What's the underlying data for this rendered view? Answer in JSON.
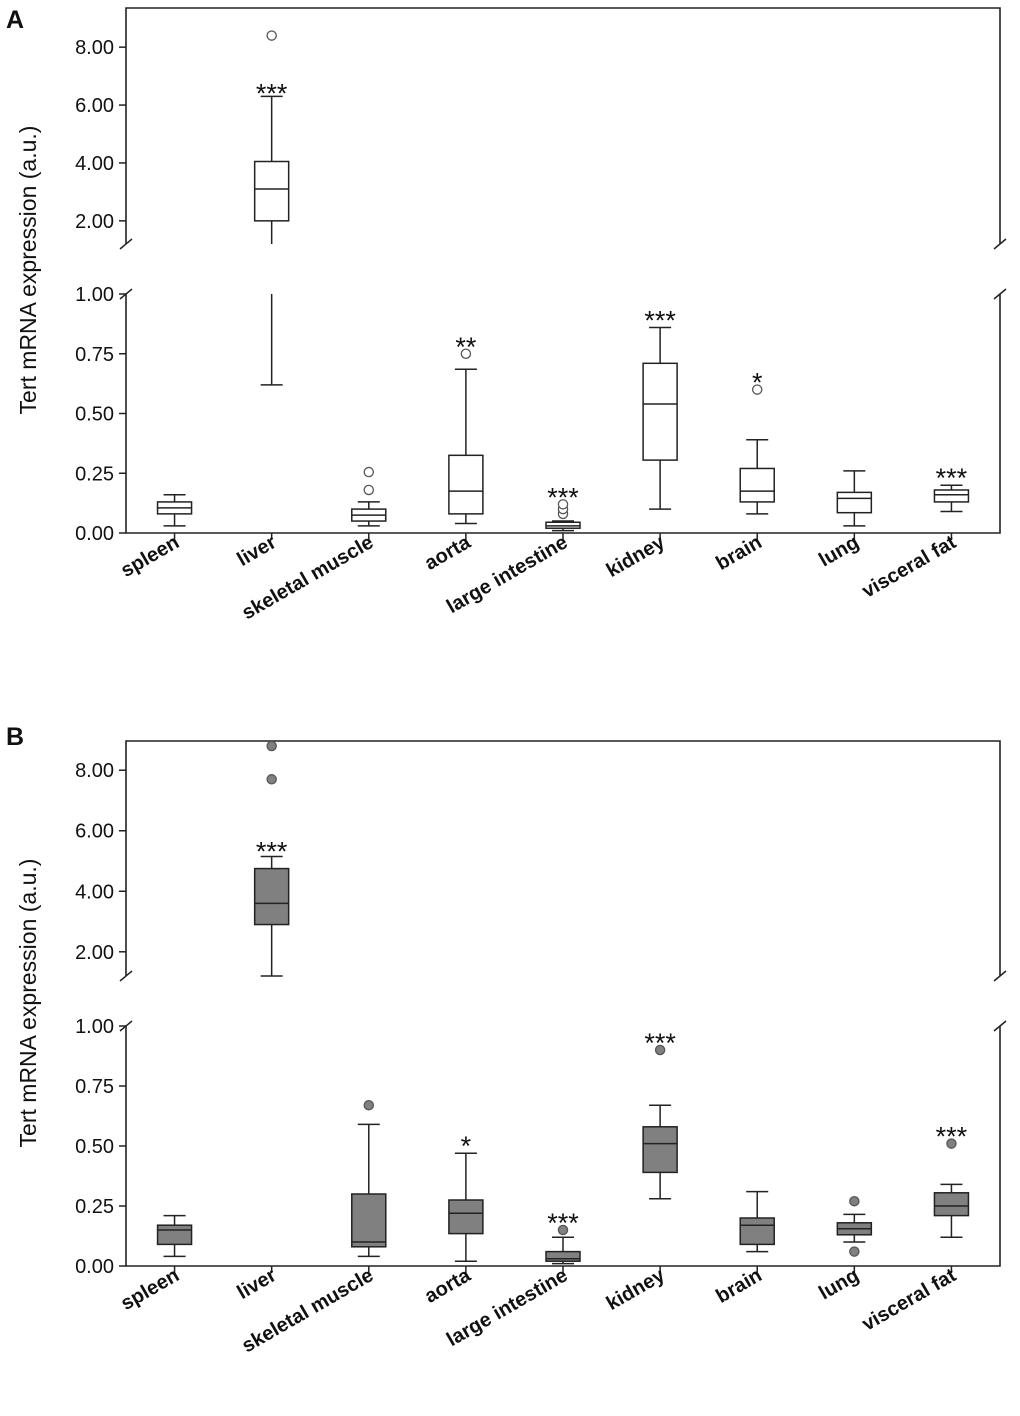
{
  "figure": {
    "colors": {
      "axis": "#222222",
      "box_fill_A": "#ffffff",
      "box_fill_B": "#808080",
      "outlier_fill_A": "#ffffff",
      "outlier_fill_B": "#808080"
    }
  },
  "chart_data": [
    {
      "panel": "A",
      "type": "box",
      "title": "",
      "ylabel": "Tert mRNA expression (a.u.)",
      "xlabel": "",
      "axis_break": true,
      "upper_ylim": [
        1.2,
        8.8
      ],
      "lower_ylim": [
        0,
        1.0
      ],
      "upper_ticks": [
        "2.00",
        "4.00",
        "6.00",
        "8.00"
      ],
      "lower_ticks": [
        "0.00",
        "0.25",
        "0.50",
        "0.75",
        "1.00"
      ],
      "categories": [
        "spleen",
        "liver",
        "skeletal muscle",
        "aorta",
        "large intestine",
        "kidney",
        "brain",
        "lung",
        "visceral fat"
      ],
      "boxes": [
        {
          "category": "spleen",
          "min": 0.03,
          "q1": 0.08,
          "median": 0.105,
          "q3": 0.13,
          "max": 0.16,
          "outliers": [],
          "significance": ""
        },
        {
          "category": "liver",
          "min": 0.62,
          "q1": 2.0,
          "median": 3.1,
          "q3": 4.05,
          "max": 6.3,
          "outliers": [
            8.4
          ],
          "significance": "***"
        },
        {
          "category": "skeletal muscle",
          "min": 0.03,
          "q1": 0.05,
          "median": 0.075,
          "q3": 0.1,
          "max": 0.13,
          "outliers": [
            0.18,
            0.255
          ],
          "significance": ""
        },
        {
          "category": "aorta",
          "min": 0.04,
          "q1": 0.08,
          "median": 0.175,
          "q3": 0.325,
          "max": 0.685,
          "outliers": [
            0.75
          ],
          "significance": "**"
        },
        {
          "category": "large intestine",
          "min": 0.01,
          "q1": 0.02,
          "median": 0.03,
          "q3": 0.045,
          "max": 0.05,
          "outliers": [
            0.08,
            0.1,
            0.12
          ],
          "significance": "***"
        },
        {
          "category": "kidney",
          "min": 0.1,
          "q1": 0.305,
          "median": 0.54,
          "q3": 0.71,
          "max": 0.86,
          "outliers": [],
          "significance": "***"
        },
        {
          "category": "brain",
          "min": 0.08,
          "q1": 0.13,
          "median": 0.175,
          "q3": 0.27,
          "max": 0.39,
          "outliers": [
            0.6
          ],
          "significance": "*"
        },
        {
          "category": "lung",
          "min": 0.03,
          "q1": 0.085,
          "median": 0.145,
          "q3": 0.17,
          "max": 0.26,
          "outliers": [],
          "significance": ""
        },
        {
          "category": "visceral fat",
          "min": 0.09,
          "q1": 0.13,
          "median": 0.16,
          "q3": 0.18,
          "max": 0.2,
          "outliers": [],
          "significance": "***"
        }
      ]
    },
    {
      "panel": "B",
      "type": "box",
      "title": "",
      "ylabel": "Tert mRNA expression (a.u.)",
      "xlabel": "",
      "axis_break": true,
      "upper_ylim": [
        1.2,
        8.8
      ],
      "lower_ylim": [
        0,
        1.0
      ],
      "upper_ticks": [
        "2.00",
        "4.00",
        "6.00",
        "8.00"
      ],
      "lower_ticks": [
        "0.00",
        "0.25",
        "0.50",
        "0.75",
        "1.00"
      ],
      "categories": [
        "spleen",
        "liver",
        "skeletal muscle",
        "aorta",
        "large intestine",
        "kidney",
        "brain",
        "lung",
        "visceral fat"
      ],
      "boxes": [
        {
          "category": "spleen",
          "min": 0.04,
          "q1": 0.09,
          "median": 0.15,
          "q3": 0.17,
          "max": 0.21,
          "outliers": [],
          "significance": ""
        },
        {
          "category": "liver",
          "min": 1.2,
          "q1": 2.9,
          "median": 3.6,
          "q3": 4.75,
          "max": 5.15,
          "outliers": [
            7.7,
            8.8
          ],
          "significance": "***"
        },
        {
          "category": "skeletal muscle",
          "min": 0.04,
          "q1": 0.08,
          "median": 0.1,
          "q3": 0.3,
          "max": 0.59,
          "outliers": [
            0.67
          ],
          "significance": ""
        },
        {
          "category": "aorta",
          "min": 0.02,
          "q1": 0.135,
          "median": 0.22,
          "q3": 0.275,
          "max": 0.47,
          "outliers": [],
          "significance": "*"
        },
        {
          "category": "large intestine",
          "min": 0.01,
          "q1": 0.02,
          "median": 0.03,
          "q3": 0.06,
          "max": 0.12,
          "outliers": [
            0.15
          ],
          "significance": "***"
        },
        {
          "category": "kidney",
          "min": 0.28,
          "q1": 0.39,
          "median": 0.51,
          "q3": 0.58,
          "max": 0.67,
          "outliers": [
            0.9
          ],
          "significance": "***"
        },
        {
          "category": "brain",
          "min": 0.06,
          "q1": 0.09,
          "median": 0.17,
          "q3": 0.2,
          "max": 0.31,
          "outliers": [],
          "significance": ""
        },
        {
          "category": "lung",
          "min": 0.1,
          "q1": 0.13,
          "median": 0.155,
          "q3": 0.18,
          "max": 0.215,
          "outliers": [
            0.06,
            0.27
          ],
          "significance": ""
        },
        {
          "category": "visceral fat",
          "min": 0.12,
          "q1": 0.21,
          "median": 0.25,
          "q3": 0.305,
          "max": 0.34,
          "outliers": [
            0.51
          ],
          "significance": "***"
        }
      ]
    }
  ]
}
